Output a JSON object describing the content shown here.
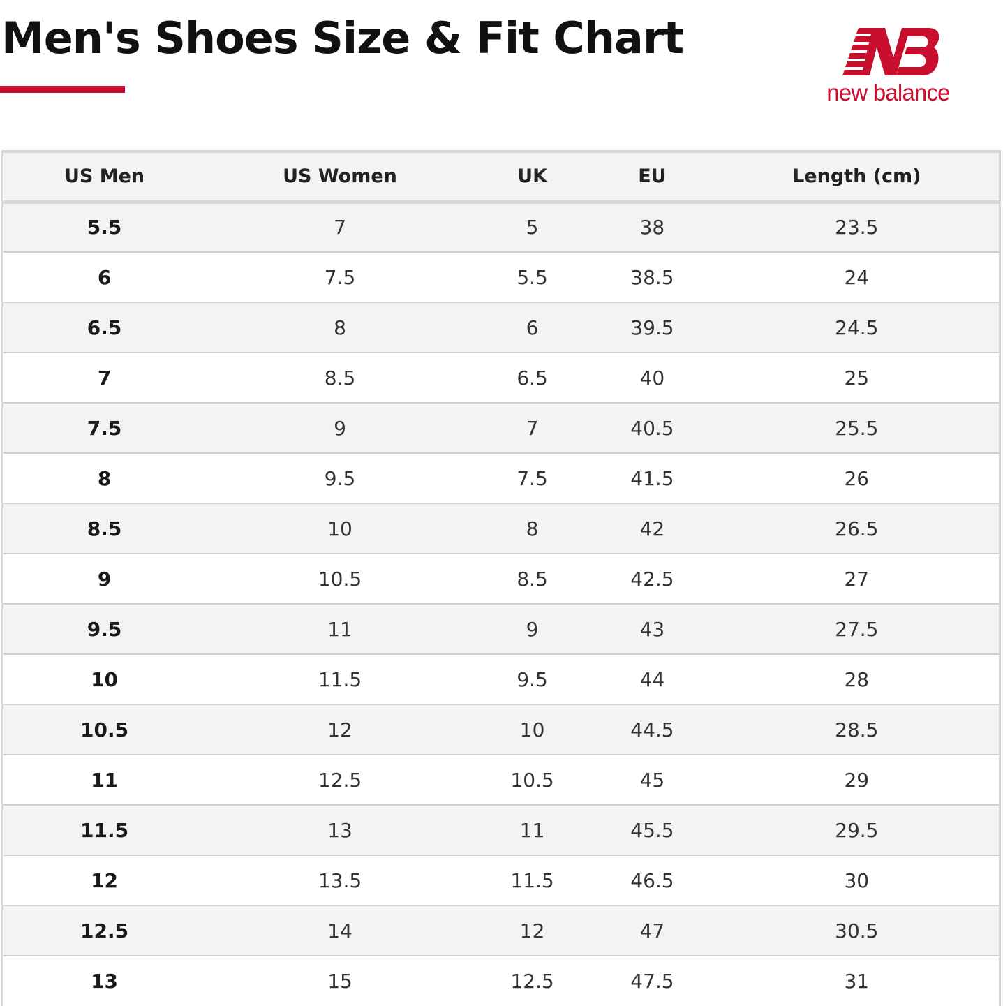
{
  "header": {
    "title": "Men's Shoes Size & Fit Chart",
    "accent_color": "#c8102e"
  },
  "logo": {
    "wordmark": "new balance",
    "icon": "nb-monogram-icon",
    "color": "#c8102e"
  },
  "table": {
    "columns": [
      "US Men",
      "US Women",
      "UK",
      "EU",
      "Length (cm)"
    ],
    "rows": [
      [
        "5.5",
        "7",
        "5",
        "38",
        "23.5"
      ],
      [
        "6",
        "7.5",
        "5.5",
        "38.5",
        "24"
      ],
      [
        "6.5",
        "8",
        "6",
        "39.5",
        "24.5"
      ],
      [
        "7",
        "8.5",
        "6.5",
        "40",
        "25"
      ],
      [
        "7.5",
        "9",
        "7",
        "40.5",
        "25.5"
      ],
      [
        "8",
        "9.5",
        "7.5",
        "41.5",
        "26"
      ],
      [
        "8.5",
        "10",
        "8",
        "42",
        "26.5"
      ],
      [
        "9",
        "10.5",
        "8.5",
        "42.5",
        "27"
      ],
      [
        "9.5",
        "11",
        "9",
        "43",
        "27.5"
      ],
      [
        "10",
        "11.5",
        "9.5",
        "44",
        "28"
      ],
      [
        "10.5",
        "12",
        "10",
        "44.5",
        "28.5"
      ],
      [
        "11",
        "12.5",
        "10.5",
        "45",
        "29"
      ],
      [
        "11.5",
        "13",
        "11",
        "45.5",
        "29.5"
      ],
      [
        "12",
        "13.5",
        "11.5",
        "46.5",
        "30"
      ],
      [
        "12.5",
        "14",
        "12",
        "47",
        "30.5"
      ],
      [
        "13",
        "15",
        "12.5",
        "47.5",
        "31"
      ]
    ]
  }
}
